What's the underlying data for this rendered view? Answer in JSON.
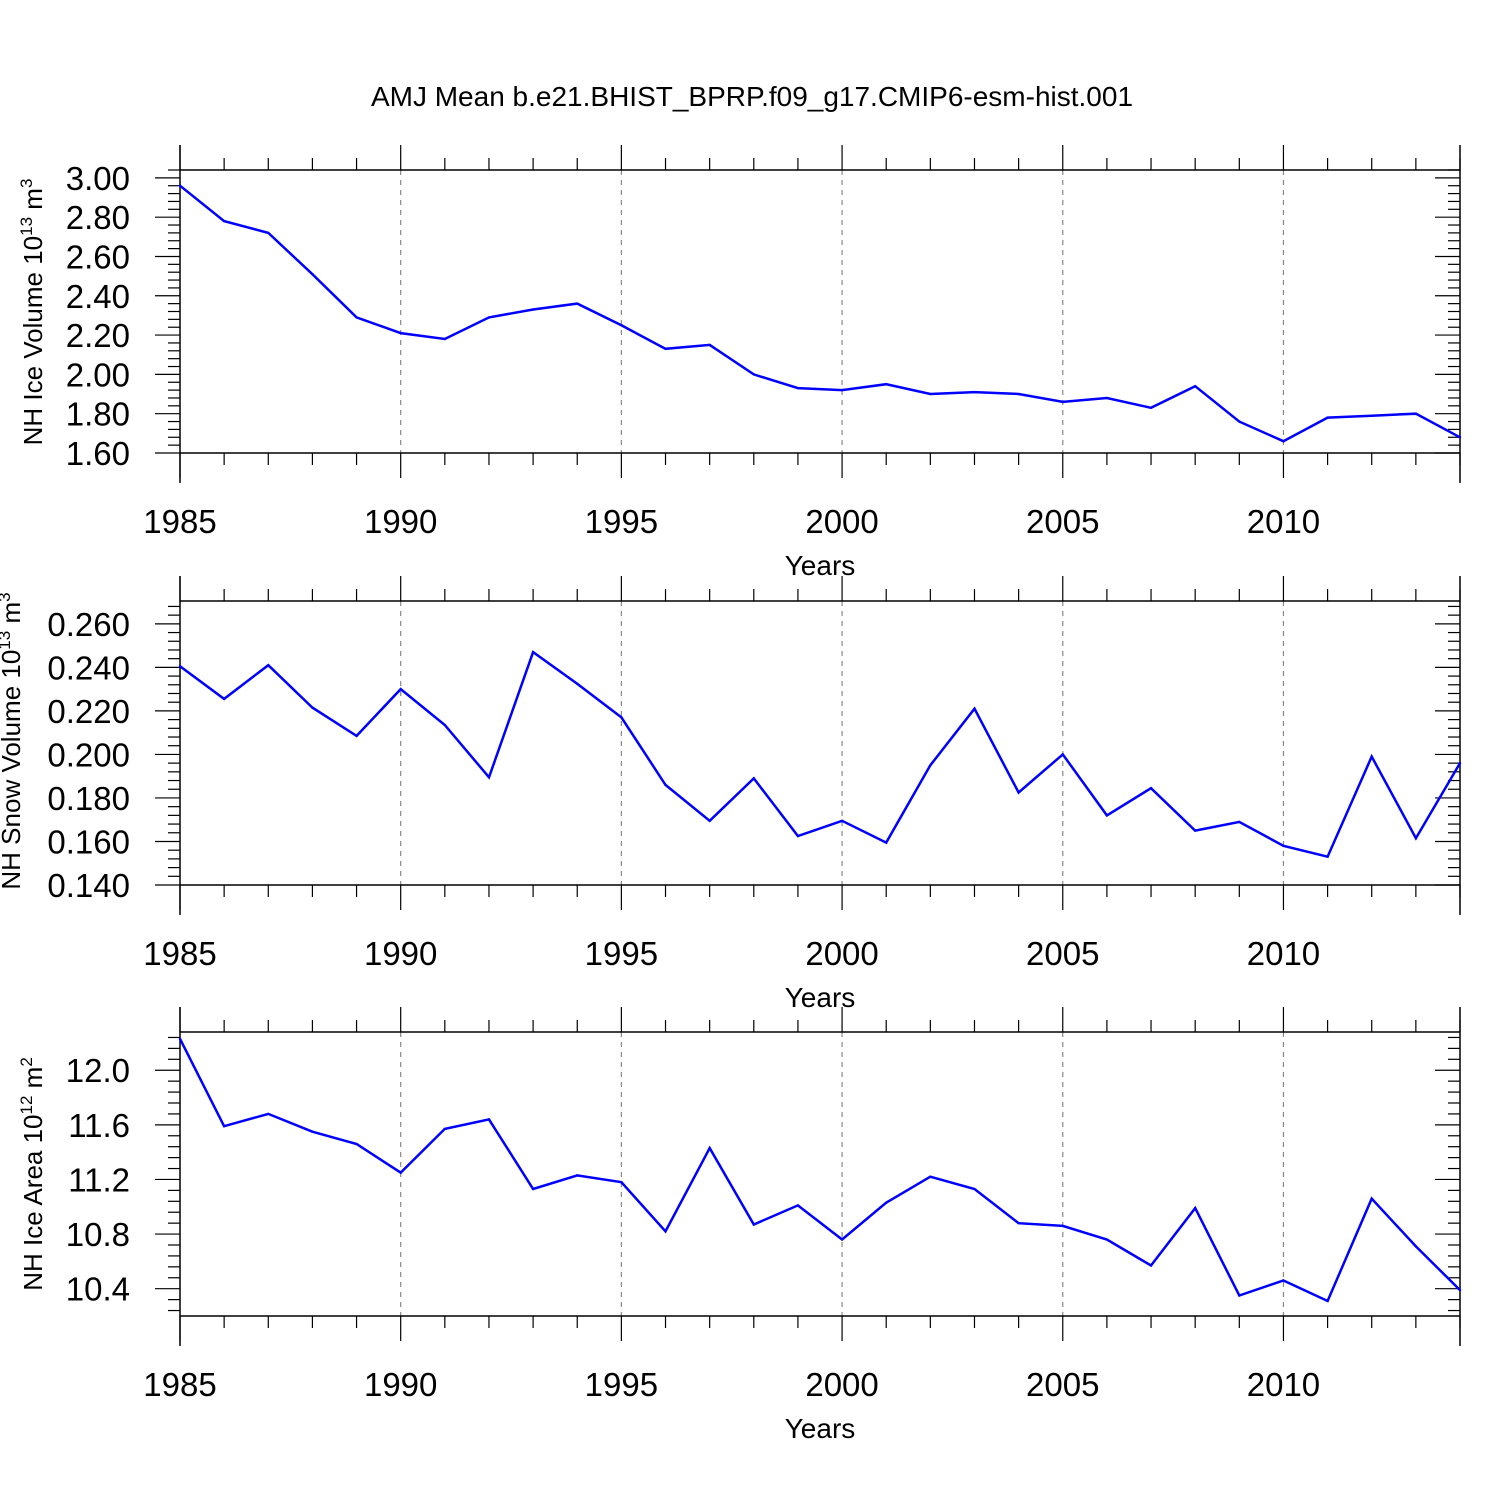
{
  "title": "AMJ Mean b.e21.BHIST_BPRP.f09_g17.CMIP6-esm-hist.001",
  "line_color": "#0000ff",
  "chart_data": [
    {
      "type": "line",
      "ylabel_main": "NH Ice Volume 10",
      "ylabel_exp": "13",
      "ylabel_unit": "m",
      "ylabel_unit_exp": "3",
      "xlabel": "Years",
      "xlim": [
        1985,
        2014
      ],
      "ylim": [
        1.6,
        3.04
      ],
      "xticks": [
        1985,
        1990,
        1995,
        2000,
        2005,
        2010
      ],
      "xtick_labels": [
        "1985",
        "1990",
        "1995",
        "2000",
        "2005",
        "2010"
      ],
      "yticks": [
        1.6,
        1.8,
        2.0,
        2.2,
        2.4,
        2.6,
        2.8,
        3.0
      ],
      "ytick_labels": [
        "1.60",
        "1.80",
        "2.00",
        "2.20",
        "2.40",
        "2.60",
        "2.80",
        "3.00"
      ],
      "x": [
        1985,
        1986,
        1987,
        1988,
        1989,
        1990,
        1991,
        1992,
        1993,
        1994,
        1995,
        1996,
        1997,
        1998,
        1999,
        2000,
        2001,
        2002,
        2003,
        2004,
        2005,
        2006,
        2007,
        2008,
        2009,
        2010,
        2011,
        2012,
        2013,
        2014
      ],
      "values": [
        2.96,
        2.78,
        2.72,
        2.51,
        2.29,
        2.21,
        2.18,
        2.29,
        2.33,
        2.36,
        2.25,
        2.13,
        2.15,
        2.0,
        1.93,
        1.92,
        1.95,
        1.9,
        1.91,
        1.9,
        1.86,
        1.88,
        1.83,
        1.94,
        1.76,
        1.66,
        1.78,
        1.79,
        1.8,
        1.68
      ]
    },
    {
      "type": "line",
      "ylabel_main": "NH Snow Volume 10",
      "ylabel_exp": "13",
      "ylabel_unit": "m",
      "ylabel_unit_exp": "3",
      "xlabel": "Years",
      "xlim": [
        1985,
        2014
      ],
      "ylim": [
        0.14,
        0.2705
      ],
      "xticks": [
        1985,
        1990,
        1995,
        2000,
        2005,
        2010
      ],
      "xtick_labels": [
        "1985",
        "1990",
        "1995",
        "2000",
        "2005",
        "2010"
      ],
      "yticks": [
        0.14,
        0.16,
        0.18,
        0.2,
        0.22,
        0.24,
        0.26
      ],
      "ytick_labels": [
        "0.140",
        "0.160",
        "0.180",
        "0.200",
        "0.220",
        "0.240",
        "0.260"
      ],
      "x": [
        1985,
        1986,
        1987,
        1988,
        1989,
        1990,
        1991,
        1992,
        1993,
        1994,
        1995,
        1996,
        1997,
        1998,
        1999,
        2000,
        2001,
        2002,
        2003,
        2004,
        2005,
        2006,
        2007,
        2008,
        2009,
        2010,
        2011,
        2012,
        2013,
        2014
      ],
      "values": [
        0.2405,
        0.2255,
        0.241,
        0.2215,
        0.2085,
        0.23,
        0.2135,
        0.1895,
        0.247,
        0.2325,
        0.217,
        0.186,
        0.1695,
        0.189,
        0.1625,
        0.1695,
        0.1595,
        0.195,
        0.221,
        0.1825,
        0.2,
        0.172,
        0.1845,
        0.165,
        0.169,
        0.158,
        0.153,
        0.199,
        0.1615,
        0.196
      ]
    },
    {
      "type": "line",
      "ylabel_main": "NH Ice Area 10",
      "ylabel_exp": "12",
      "ylabel_unit": "m",
      "ylabel_unit_exp": "2",
      "xlabel": "Years",
      "xlim": [
        1985,
        2014
      ],
      "ylim": [
        10.2,
        12.28
      ],
      "xticks": [
        1985,
        1990,
        1995,
        2000,
        2005,
        2010
      ],
      "xtick_labels": [
        "1985",
        "1990",
        "1995",
        "2000",
        "2005",
        "2010"
      ],
      "yticks": [
        10.4,
        10.8,
        11.2,
        11.6,
        12.0
      ],
      "ytick_labels": [
        "10.4",
        "10.8",
        "11.2",
        "11.6",
        "12.0"
      ],
      "x": [
        1985,
        1986,
        1987,
        1988,
        1989,
        1990,
        1991,
        1992,
        1993,
        1994,
        1995,
        1996,
        1997,
        1998,
        1999,
        2000,
        2001,
        2002,
        2003,
        2004,
        2005,
        2006,
        2007,
        2008,
        2009,
        2010,
        2011,
        2012,
        2013,
        2014
      ],
      "values": [
        12.23,
        11.59,
        11.68,
        11.55,
        11.46,
        11.25,
        11.57,
        11.64,
        11.13,
        11.23,
        11.18,
        10.82,
        11.43,
        10.87,
        11.01,
        10.76,
        11.03,
        11.22,
        11.13,
        10.88,
        10.86,
        10.76,
        10.57,
        10.99,
        10.35,
        10.46,
        10.31,
        11.06,
        10.71,
        10.39
      ]
    }
  ]
}
